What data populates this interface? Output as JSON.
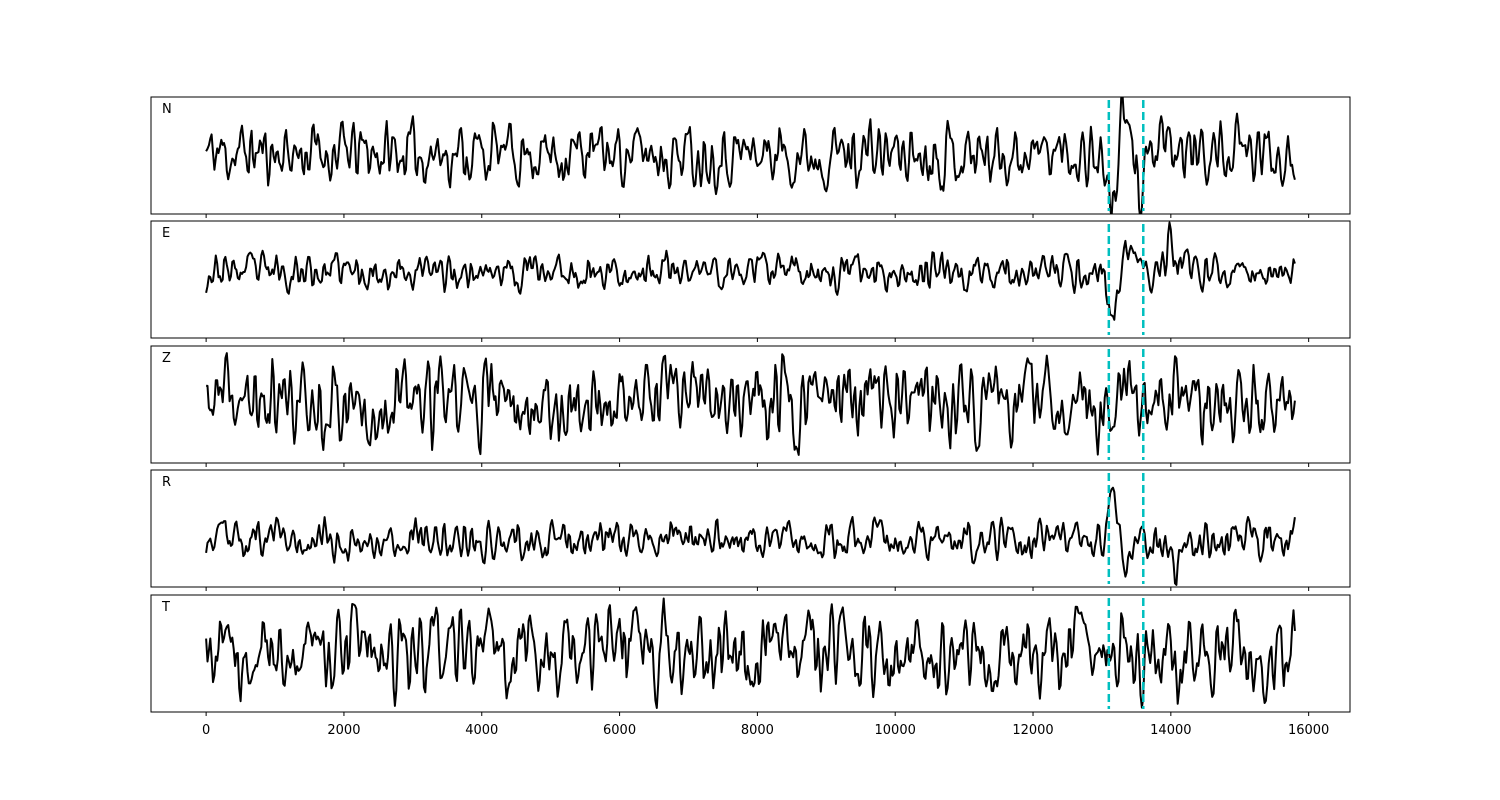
{
  "chart_data": {
    "type": "line",
    "xlim": [
      -800,
      16600
    ],
    "x_ticks": [
      0,
      2000,
      4000,
      6000,
      8000,
      10000,
      12000,
      14000,
      16000
    ],
    "x_tick_labels": [
      "0",
      "2000",
      "4000",
      "6000",
      "8000",
      "10000",
      "12000",
      "14000",
      "16000"
    ],
    "n_samples": 15800,
    "trace_color": "#000000",
    "marker_color": "#00bfbf",
    "grid": false,
    "vertical_markers": [
      13100,
      13600
    ],
    "panels": [
      {
        "label": "N",
        "seed": 11,
        "noise_amp": 0.36,
        "ylim": [
          -1.1,
          1.0
        ],
        "offset": 0.0,
        "events": [
          {
            "x": 13140,
            "amp": -1.0,
            "width": 90
          },
          {
            "x": 13300,
            "amp": 0.7,
            "width": 70
          },
          {
            "x": 13550,
            "amp": -0.6,
            "width": 60
          }
        ]
      },
      {
        "label": "E",
        "seed": 23,
        "noise_amp": 0.22,
        "ylim": [
          -1.25,
          0.95
        ],
        "offset": 0.0,
        "events": [
          {
            "x": 13160,
            "amp": -1.05,
            "width": 80
          },
          {
            "x": 13370,
            "amp": 0.55,
            "width": 70
          },
          {
            "x": 13980,
            "amp": 0.55,
            "width": 60
          }
        ]
      },
      {
        "label": "Z",
        "seed": 37,
        "noise_amp": 0.48,
        "ylim": [
          -1.1,
          1.0
        ],
        "offset": 0.0,
        "events": []
      },
      {
        "label": "R",
        "seed": 53,
        "noise_amp": 0.22,
        "ylim": [
          -0.85,
          1.25
        ],
        "offset": 0.0,
        "events": [
          {
            "x": 13170,
            "amp": 1.05,
            "width": 80
          },
          {
            "x": 13330,
            "amp": -0.55,
            "width": 90
          },
          {
            "x": 14050,
            "amp": -0.6,
            "width": 70
          }
        ]
      },
      {
        "label": "T",
        "seed": 71,
        "noise_amp": 0.48,
        "ylim": [
          -1.05,
          1.0
        ],
        "offset": 0.0,
        "events": []
      }
    ]
  }
}
